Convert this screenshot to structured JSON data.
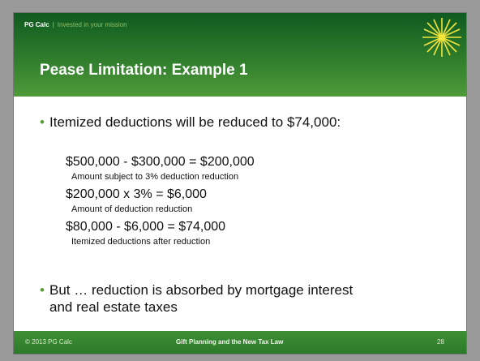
{
  "header": {
    "brand": "PG Calc",
    "separator": "|",
    "tagline": "Invested in your mission",
    "title": "Pease Limitation: Example 1"
  },
  "bullets": [
    "Itemized deductions will be reduced to $74,000:",
    "But … reduction is absorbed by mortgage interest and real estate taxes"
  ],
  "calculations": [
    {
      "line": "$500,000 - $300,000 = $200,000",
      "caption": "Amount subject to 3% deduction reduction"
    },
    {
      "line": "$200,000 x 3% = $6,000",
      "caption": "Amount of deduction reduction"
    },
    {
      "line": "$80,000 - $6,000 = $74,000",
      "caption": "Itemized deductions after reduction"
    }
  ],
  "footer": {
    "copyright": "© 2013 PG Calc",
    "center": "Gift Planning and the New Tax Law",
    "page": "28"
  }
}
